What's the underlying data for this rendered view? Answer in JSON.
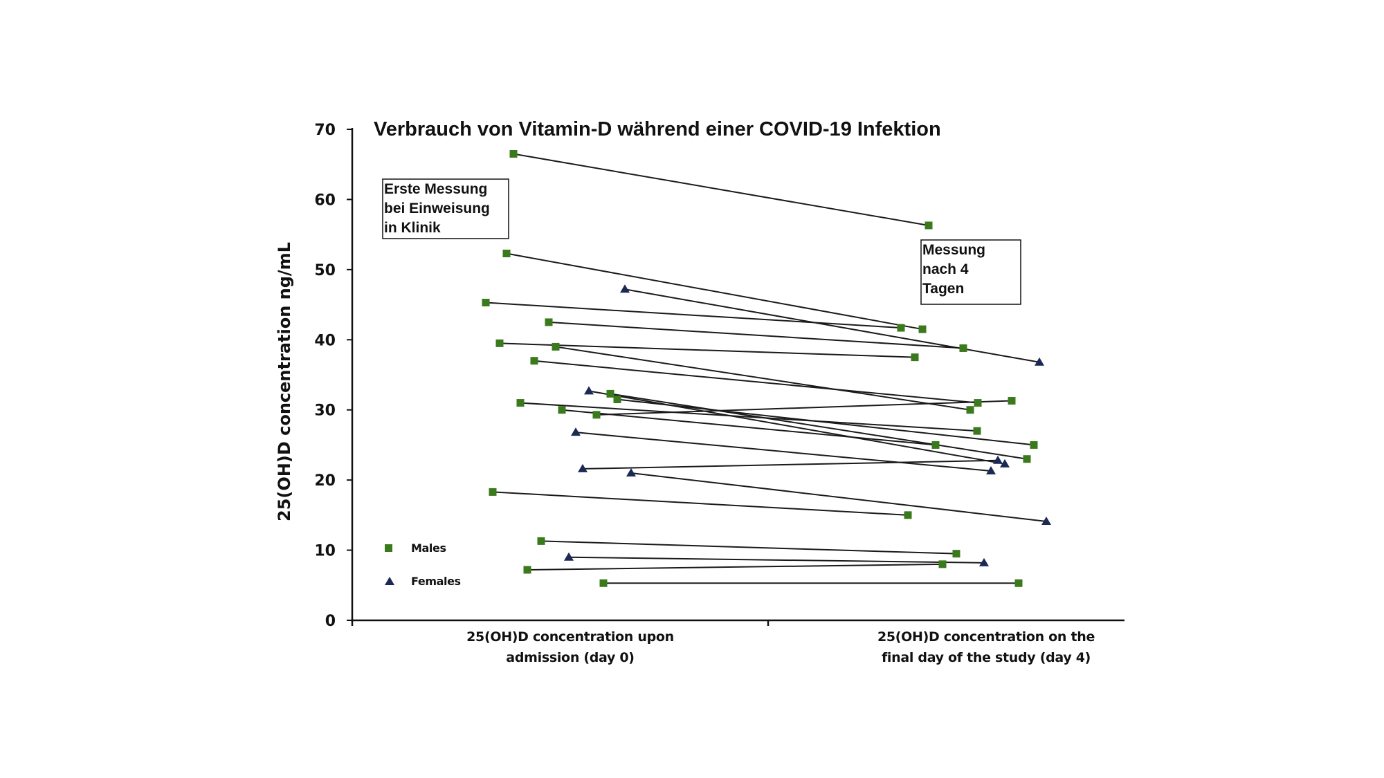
{
  "chart_data": {
    "type": "line",
    "title": "Verbrauch von Vitamin-D während einer COVID-19 Infektion",
    "ylabel": "25(OH)D concentration ng/mL",
    "ylim": [
      0,
      70
    ],
    "yticks": [
      "0",
      "10",
      "20",
      "30",
      "40",
      "50",
      "60",
      "70"
    ],
    "categories": [
      [
        "25(OH)D concentration upon",
        "admission (day 0)"
      ],
      [
        "25(OH)D concentration on the",
        "final day of the study (day 4)"
      ]
    ],
    "annotations": [
      [
        "Erste Messung",
        "bei Einweisung",
        "in Klinik"
      ],
      [
        "Messung",
        "nach 4",
        "Tagen"
      ]
    ],
    "legend": {
      "position": "lower-left",
      "entries": [
        "Males",
        "Females"
      ]
    },
    "colors": {
      "male": "#3a7a1c",
      "female": "#1b2a55",
      "line": "#1a1a1a"
    },
    "series": [
      {
        "group": "Males",
        "values": [
          66.5,
          56.3
        ]
      },
      {
        "group": "Males",
        "values": [
          52.3,
          41.5
        ]
      },
      {
        "group": "Males",
        "values": [
          45.3,
          41.7
        ]
      },
      {
        "group": "Males",
        "values": [
          42.5,
          38.8
        ]
      },
      {
        "group": "Males",
        "values": [
          39.5,
          37.5
        ]
      },
      {
        "group": "Males",
        "values": [
          39.0,
          30.0
        ]
      },
      {
        "group": "Males",
        "values": [
          37.0,
          31.0
        ]
      },
      {
        "group": "Males",
        "values": [
          32.3,
          23.0
        ]
      },
      {
        "group": "Males",
        "values": [
          31.5,
          25.0
        ]
      },
      {
        "group": "Males",
        "values": [
          31.0,
          27.0
        ]
      },
      {
        "group": "Males",
        "values": [
          30.0,
          25.0
        ]
      },
      {
        "group": "Males",
        "values": [
          29.3,
          31.3
        ]
      },
      {
        "group": "Males",
        "values": [
          18.3,
          15.0
        ]
      },
      {
        "group": "Males",
        "values": [
          11.3,
          9.5
        ]
      },
      {
        "group": "Males",
        "values": [
          7.2,
          8.0
        ]
      },
      {
        "group": "Males",
        "values": [
          5.3,
          5.3
        ]
      },
      {
        "group": "Females",
        "values": [
          47.2,
          36.8
        ]
      },
      {
        "group": "Females",
        "values": [
          32.7,
          22.3
        ]
      },
      {
        "group": "Females",
        "values": [
          26.8,
          21.3
        ]
      },
      {
        "group": "Females",
        "values": [
          21.6,
          22.8
        ]
      },
      {
        "group": "Females",
        "values": [
          21.0,
          14.1
        ]
      },
      {
        "group": "Females",
        "values": [
          9.0,
          8.2
        ]
      }
    ]
  }
}
